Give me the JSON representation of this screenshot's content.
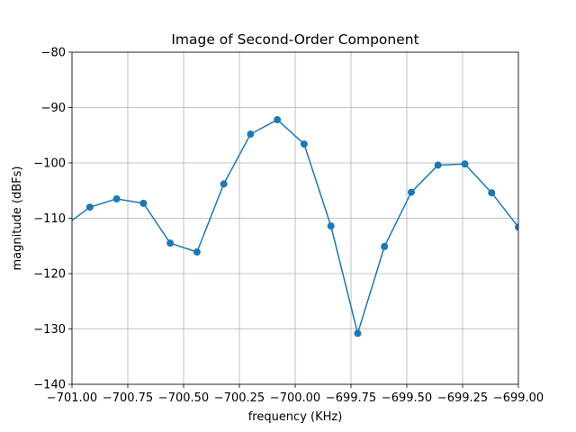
{
  "chart_data": {
    "type": "line",
    "title": "Image of Second-Order Component",
    "xlabel": "frequency (KHz)",
    "ylabel": "magnitude (dBFs)",
    "xlim": [
      -701.0,
      -699.0
    ],
    "ylim": [
      -140,
      -80
    ],
    "xticks": [
      -701.0,
      -700.75,
      -700.5,
      -700.25,
      -700.0,
      -699.75,
      -699.5,
      -699.25,
      -699.0
    ],
    "xtick_labels": [
      "−701.00",
      "−700.75",
      "−700.50",
      "−700.25",
      "−700.00",
      "−699.75",
      "−699.50",
      "−699.25",
      "−699.00"
    ],
    "yticks": [
      -140,
      -130,
      -120,
      -110,
      -100,
      -90,
      -80
    ],
    "ytick_labels": [
      "−140",
      "−130",
      "−120",
      "−110",
      "−100",
      "−90",
      "−80"
    ],
    "grid": true,
    "color": "#1f77b4",
    "series": [
      {
        "x": [
          -701.04,
          -700.92,
          -700.8,
          -700.68,
          -700.56,
          -700.44,
          -700.32,
          -700.2,
          -700.08,
          -699.96,
          -699.84,
          -699.72,
          -699.6,
          -699.48,
          -699.36,
          -699.24,
          -699.12,
          -699.0
        ],
        "values": [
          -111.6,
          -108.0,
          -106.5,
          -107.3,
          -114.5,
          -116.1,
          -103.8,
          -94.8,
          -92.2,
          -96.6,
          -111.4,
          -130.8,
          -115.1,
          -105.3,
          -100.4,
          -100.2,
          -105.4,
          -111.6
        ]
      }
    ]
  }
}
